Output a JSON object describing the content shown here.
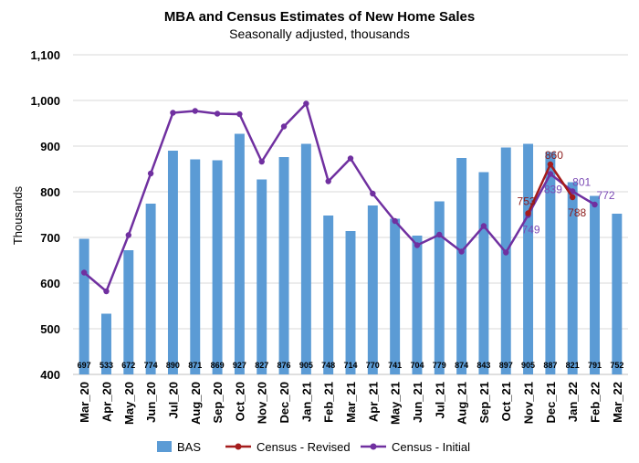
{
  "chart_data": {
    "type": "bar",
    "title": "MBA and Census Estimates of New Home Sales",
    "subtitle": "Seasonally adjusted, thousands",
    "ylabel": "Thousands",
    "xlabel": "",
    "ylim": [
      400,
      1100
    ],
    "yticks": [
      "400",
      "500",
      "600",
      "700",
      "800",
      "900",
      "1,000",
      "1,100"
    ],
    "ytick_values": [
      400,
      500,
      600,
      700,
      800,
      900,
      1000,
      1100
    ],
    "categories": [
      "Mar_20",
      "Apr_20",
      "May_20",
      "Jun_20",
      "Jul_20",
      "Aug_20",
      "Sep_20",
      "Oct_20",
      "Nov_20",
      "Dec_20",
      "Jan_21",
      "Feb_21",
      "Mar_21",
      "Apr_21",
      "May_21",
      "Jun_21",
      "Jul_21",
      "Aug_21",
      "Sep_21",
      "Oct_21",
      "Nov_21",
      "Dec_21",
      "Jan_22",
      "Feb_22",
      "Mar_22"
    ],
    "series": [
      {
        "name": "BAS",
        "kind": "bar",
        "color": "#5B9BD5",
        "values": [
          697,
          533,
          672,
          774,
          890,
          871,
          869,
          927,
          827,
          876,
          905,
          748,
          714,
          770,
          741,
          704,
          779,
          874,
          843,
          897,
          905,
          887,
          821,
          791,
          752
        ],
        "labels": [
          "697",
          "533",
          "672",
          "774",
          "890",
          "871",
          "869",
          "927",
          "827",
          "876",
          "905",
          "748",
          "714",
          "770",
          "741",
          "704",
          "779",
          "874",
          "843",
          "897",
          "905",
          "887",
          "821",
          "791",
          "752"
        ]
      },
      {
        "name": "Census - Initial",
        "kind": "line",
        "color": "#7030A0",
        "values": [
          623,
          582,
          705,
          840,
          973,
          977,
          971,
          970,
          866,
          943,
          993,
          823,
          873,
          796,
          736,
          683,
          706,
          669,
          725,
          667,
          749,
          839,
          801,
          772,
          null
        ],
        "data_labels": {
          "20": "749",
          "21": "839",
          "22": "801",
          "23": "772"
        }
      },
      {
        "name": "Census - Revised",
        "kind": "line",
        "color": "#A51C1C",
        "values": [
          null,
          null,
          null,
          null,
          null,
          null,
          null,
          null,
          null,
          null,
          null,
          null,
          null,
          null,
          null,
          null,
          null,
          null,
          null,
          null,
          753,
          860,
          788,
          null,
          null
        ],
        "data_labels": {
          "20": "753",
          "21": "860",
          "22": "788"
        }
      }
    ],
    "legend": [
      "BAS",
      "Census - Revised",
      "Census - Initial"
    ],
    "legend_position": "bottom",
    "grid": true
  }
}
